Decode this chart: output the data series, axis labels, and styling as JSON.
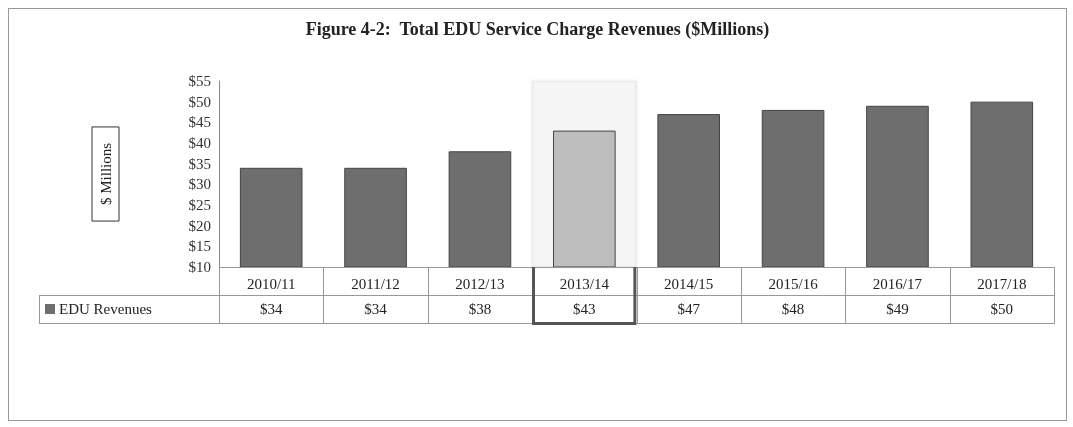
{
  "chart_data": {
    "type": "bar",
    "title": "Figure 4-2:  Total EDU Service Charge Revenues ($Millions)",
    "ylabel": "$ Millions",
    "categories": [
      "2010/11",
      "2011/12",
      "2012/13",
      "2013/14",
      "2014/15",
      "2015/16",
      "2016/17",
      "2017/18"
    ],
    "series": [
      {
        "name": "EDU Revenues",
        "color": "#6e6e6e",
        "colors": [
          "#6e6e6e",
          "#6e6e6e",
          "#6e6e6e",
          "#bdbdbd",
          "#6e6e6e",
          "#6e6e6e",
          "#6e6e6e",
          "#6e6e6e"
        ],
        "values": [
          34,
          34,
          38,
          43,
          47,
          48,
          49,
          50
        ],
        "value_labels": [
          "$34",
          "$34",
          "$38",
          "$43",
          "$47",
          "$48",
          "$49",
          "$50"
        ]
      }
    ],
    "ylim": [
      10,
      55
    ],
    "yticks": [
      {
        "value": 10,
        "label": "$10"
      },
      {
        "value": 15,
        "label": "$15"
      },
      {
        "value": 20,
        "label": "$20"
      },
      {
        "value": 25,
        "label": "$25"
      },
      {
        "value": 30,
        "label": "$30"
      },
      {
        "value": 35,
        "label": "$35"
      },
      {
        "value": 40,
        "label": "$40"
      },
      {
        "value": 45,
        "label": "$45"
      },
      {
        "value": 50,
        "label": "$50"
      },
      {
        "value": 55,
        "label": "$55"
      }
    ],
    "bands": [
      {
        "axis": "x",
        "from": "2013/14",
        "to": "2013/14",
        "color": "#555555"
      }
    ],
    "grid": false,
    "legend": "bottom left"
  }
}
